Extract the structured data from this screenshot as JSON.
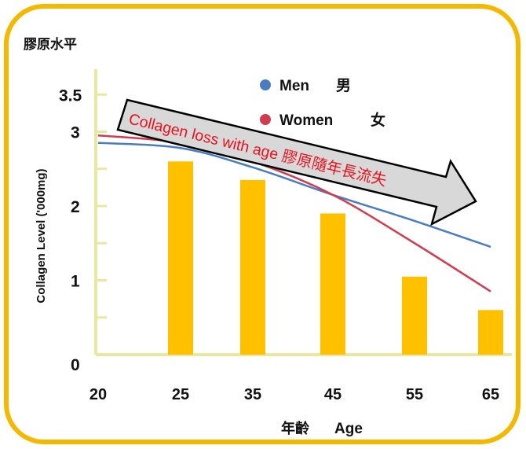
{
  "chart_data": {
    "type": "bar",
    "title": "膠原水平",
    "ylabel": "Collagen Level ('000mg)",
    "xlabel_cn": "年齡",
    "xlabel_en": "Age",
    "categories": [
      "25",
      "35",
      "45",
      "55",
      "65"
    ],
    "values": [
      2.6,
      2.35,
      1.9,
      1.05,
      0.6
    ],
    "x_ticks": [
      "20",
      "25",
      "35",
      "45",
      "55",
      "65"
    ],
    "y_ticks": [
      {
        "value": 0,
        "label": "0"
      },
      {
        "value": 1,
        "label": "1"
      },
      {
        "value": 2,
        "label": "2"
      },
      {
        "value": 3,
        "label": "3"
      },
      {
        "value": 3.5,
        "label": "3.5"
      }
    ],
    "ylim": [
      0,
      3.8
    ],
    "bar_color": "#FFC000",
    "series": [
      {
        "name": "Men",
        "name_cn": "男",
        "color": "#4A7CC2",
        "x": [
          20,
          25,
          35,
          45,
          55,
          65
        ],
        "y": [
          2.85,
          2.78,
          2.52,
          2.15,
          1.8,
          1.45
        ]
      },
      {
        "name": "Women",
        "name_cn": "女",
        "color": "#D23C4E",
        "x": [
          20,
          25,
          35,
          45,
          55,
          65
        ],
        "y": [
          2.95,
          2.85,
          2.6,
          2.15,
          1.5,
          0.85
        ]
      }
    ],
    "annotation": {
      "text": "Collagen loss with age 膠原隨年長流失",
      "text_color": "#E8121E",
      "fill": "#D8D8D8"
    },
    "frame_color": "#F5B800",
    "axis_color": "#E8E8A0"
  }
}
